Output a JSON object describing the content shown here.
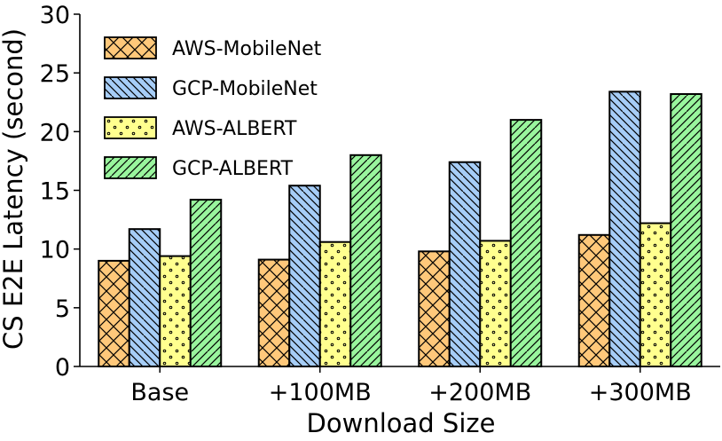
{
  "chart_data": {
    "type": "bar",
    "xlabel": "Download Size",
    "ylabel": "CS E2E Latency (second)",
    "categories": [
      "Base",
      "+100MB",
      "+200MB",
      "+300MB"
    ],
    "ylim": [
      0,
      30
    ],
    "yticks": [
      0,
      5,
      10,
      15,
      20,
      25,
      30
    ],
    "grid": false,
    "legend_position": "top-left",
    "series": [
      {
        "name": "AWS-MobileNet",
        "values": [
          9.0,
          9.1,
          9.8,
          11.2
        ],
        "color": "#ffc87a",
        "pattern": "crosshatch"
      },
      {
        "name": "GCP-MobileNet",
        "values": [
          11.7,
          15.4,
          17.4,
          23.4
        ],
        "color": "#a6cdf7",
        "pattern": "backslash"
      },
      {
        "name": "AWS-ALBERT",
        "values": [
          9.4,
          10.6,
          10.7,
          12.2
        ],
        "color": "#ffff8f",
        "pattern": "dots"
      },
      {
        "name": "GCP-ALBERT",
        "values": [
          14.2,
          18.0,
          21.0,
          23.2
        ],
        "color": "#99f59d",
        "pattern": "slash"
      }
    ]
  }
}
